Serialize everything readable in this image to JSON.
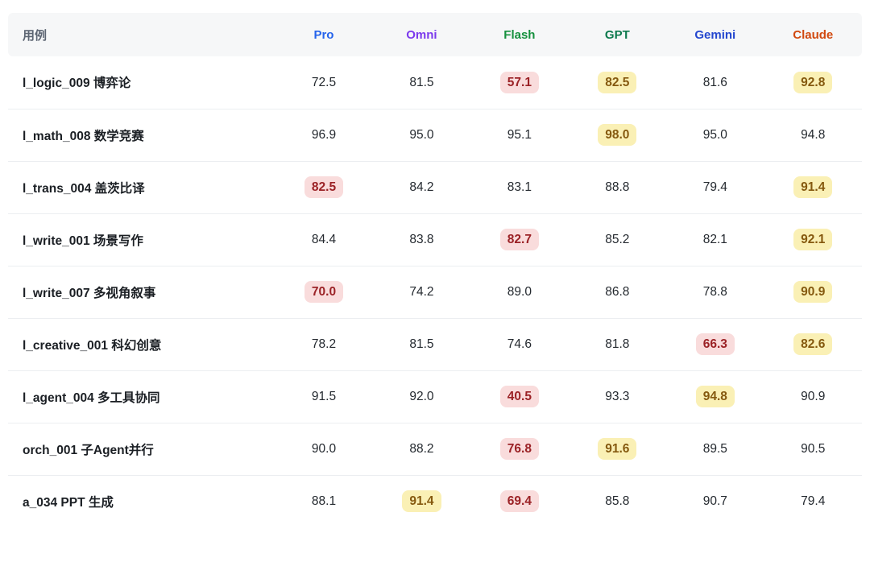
{
  "table": {
    "case_header": "用例",
    "columns": [
      {
        "label": "Pro",
        "color": "#2563eb"
      },
      {
        "label": "Omni",
        "color": "#7c3aed"
      },
      {
        "label": "Flash",
        "color": "#16913e"
      },
      {
        "label": "GPT",
        "color": "#0d7a4e"
      },
      {
        "label": "Gemini",
        "color": "#2447cf"
      },
      {
        "label": "Claude",
        "color": "#d1490f"
      }
    ],
    "rows": [
      {
        "case": "l_logic_009 博弈论",
        "scores": [
          {
            "value": "72.5",
            "hl": "none"
          },
          {
            "value": "81.5",
            "hl": "none"
          },
          {
            "value": "57.1",
            "hl": "low"
          },
          {
            "value": "82.5",
            "hl": "high"
          },
          {
            "value": "81.6",
            "hl": "none"
          },
          {
            "value": "92.8",
            "hl": "high"
          }
        ]
      },
      {
        "case": "l_math_008 数学竞赛",
        "scores": [
          {
            "value": "96.9",
            "hl": "none"
          },
          {
            "value": "95.0",
            "hl": "none"
          },
          {
            "value": "95.1",
            "hl": "none"
          },
          {
            "value": "98.0",
            "hl": "high"
          },
          {
            "value": "95.0",
            "hl": "none"
          },
          {
            "value": "94.8",
            "hl": "none"
          }
        ]
      },
      {
        "case": "l_trans_004 盖茨比译",
        "scores": [
          {
            "value": "82.5",
            "hl": "low"
          },
          {
            "value": "84.2",
            "hl": "none"
          },
          {
            "value": "83.1",
            "hl": "none"
          },
          {
            "value": "88.8",
            "hl": "none"
          },
          {
            "value": "79.4",
            "hl": "none"
          },
          {
            "value": "91.4",
            "hl": "high"
          }
        ]
      },
      {
        "case": "l_write_001 场景写作",
        "scores": [
          {
            "value": "84.4",
            "hl": "none"
          },
          {
            "value": "83.8",
            "hl": "none"
          },
          {
            "value": "82.7",
            "hl": "low"
          },
          {
            "value": "85.2",
            "hl": "none"
          },
          {
            "value": "82.1",
            "hl": "none"
          },
          {
            "value": "92.1",
            "hl": "high"
          }
        ]
      },
      {
        "case": "l_write_007 多视角叙事",
        "scores": [
          {
            "value": "70.0",
            "hl": "low"
          },
          {
            "value": "74.2",
            "hl": "none"
          },
          {
            "value": "89.0",
            "hl": "none"
          },
          {
            "value": "86.8",
            "hl": "none"
          },
          {
            "value": "78.8",
            "hl": "none"
          },
          {
            "value": "90.9",
            "hl": "high"
          }
        ]
      },
      {
        "case": "l_creative_001 科幻创意",
        "scores": [
          {
            "value": "78.2",
            "hl": "none"
          },
          {
            "value": "81.5",
            "hl": "none"
          },
          {
            "value": "74.6",
            "hl": "none"
          },
          {
            "value": "81.8",
            "hl": "none"
          },
          {
            "value": "66.3",
            "hl": "low"
          },
          {
            "value": "82.6",
            "hl": "high"
          }
        ]
      },
      {
        "case": "l_agent_004 多工具协同",
        "scores": [
          {
            "value": "91.5",
            "hl": "none"
          },
          {
            "value": "92.0",
            "hl": "none"
          },
          {
            "value": "40.5",
            "hl": "low"
          },
          {
            "value": "93.3",
            "hl": "none"
          },
          {
            "value": "94.8",
            "hl": "high"
          },
          {
            "value": "90.9",
            "hl": "none"
          }
        ]
      },
      {
        "case": "orch_001 子Agent并行",
        "scores": [
          {
            "value": "90.0",
            "hl": "none"
          },
          {
            "value": "88.2",
            "hl": "none"
          },
          {
            "value": "76.8",
            "hl": "low"
          },
          {
            "value": "91.6",
            "hl": "high"
          },
          {
            "value": "89.5",
            "hl": "none"
          },
          {
            "value": "90.5",
            "hl": "none"
          }
        ]
      },
      {
        "case": "a_034 PPT 生成",
        "scores": [
          {
            "value": "88.1",
            "hl": "none"
          },
          {
            "value": "91.4",
            "hl": "high"
          },
          {
            "value": "69.4",
            "hl": "low"
          },
          {
            "value": "85.8",
            "hl": "none"
          },
          {
            "value": "90.7",
            "hl": "none"
          },
          {
            "value": "79.4",
            "hl": "none"
          }
        ]
      }
    ]
  },
  "highlight_colors": {
    "low_bg": "#f9dcdc",
    "low_text": "#9b2226",
    "high_bg": "#faf0b5",
    "high_text": "#85590f",
    "header_bg": "#f6f7f8",
    "row_divider": "#eceef1"
  },
  "chart_data": {
    "type": "table",
    "title": "",
    "categories": [
      "l_logic_009 博弈论",
      "l_math_008 数学竞赛",
      "l_trans_004 盖茨比译",
      "l_write_001 场景写作",
      "l_write_007 多视角叙事",
      "l_creative_001 科幻创意",
      "l_agent_004 多工具协同",
      "orch_001 子Agent并行",
      "a_034 PPT 生成"
    ],
    "series": [
      {
        "name": "Pro",
        "values": [
          72.5,
          96.9,
          82.5,
          84.4,
          70.0,
          78.2,
          91.5,
          90.0,
          88.1
        ]
      },
      {
        "name": "Omni",
        "values": [
          81.5,
          95.0,
          84.2,
          83.8,
          74.2,
          81.5,
          92.0,
          88.2,
          91.4
        ]
      },
      {
        "name": "Flash",
        "values": [
          57.1,
          95.1,
          83.1,
          82.7,
          89.0,
          74.6,
          40.5,
          76.8,
          69.4
        ]
      },
      {
        "name": "GPT",
        "values": [
          82.5,
          98.0,
          88.8,
          85.2,
          86.8,
          81.8,
          93.3,
          91.6,
          85.8
        ]
      },
      {
        "name": "Gemini",
        "values": [
          81.6,
          95.0,
          79.4,
          82.1,
          78.8,
          66.3,
          94.8,
          89.5,
          90.7
        ]
      },
      {
        "name": "Claude",
        "values": [
          92.8,
          94.8,
          91.4,
          92.1,
          90.9,
          82.6,
          90.9,
          90.5,
          79.4
        ]
      }
    ],
    "highlights": {
      "low_cells": [
        [
          0,
          "Flash"
        ],
        [
          2,
          "Pro"
        ],
        [
          3,
          "Flash"
        ],
        [
          4,
          "Pro"
        ],
        [
          5,
          "Gemini"
        ],
        [
          6,
          "Flash"
        ],
        [
          7,
          "Flash"
        ],
        [
          8,
          "Flash"
        ]
      ],
      "high_cells": [
        [
          0,
          "GPT"
        ],
        [
          0,
          "Claude"
        ],
        [
          1,
          "GPT"
        ],
        [
          2,
          "Claude"
        ],
        [
          3,
          "Claude"
        ],
        [
          4,
          "Claude"
        ],
        [
          5,
          "Claude"
        ],
        [
          6,
          "Gemini"
        ],
        [
          7,
          "GPT"
        ],
        [
          8,
          "Omni"
        ]
      ]
    }
  }
}
